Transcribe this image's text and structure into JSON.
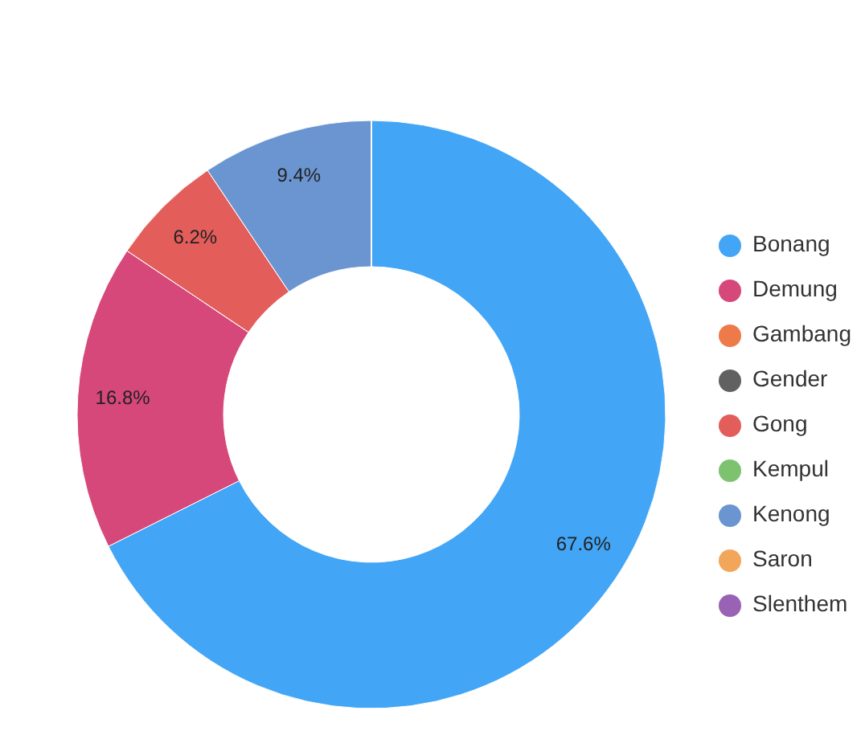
{
  "chart_data": {
    "type": "donut",
    "categories": [
      "Bonang",
      "Demung",
      "Gambang",
      "Gender",
      "Gong",
      "Kempul",
      "Kenong",
      "Saron",
      "Slenthem"
    ],
    "values": [
      67.6,
      16.8,
      0,
      0,
      6.2,
      0,
      9.4,
      0,
      0
    ],
    "colors": [
      "#42a5f5",
      "#d6477a",
      "#ee7a4a",
      "#616161",
      "#e35d5a",
      "#7cc26f",
      "#6a95d0",
      "#f2a65a",
      "#9a62b5"
    ],
    "value_labels": [
      "67.6%",
      "16.8%",
      null,
      null,
      "6.2%",
      null,
      "9.4%",
      null,
      null
    ],
    "legend": "right"
  }
}
